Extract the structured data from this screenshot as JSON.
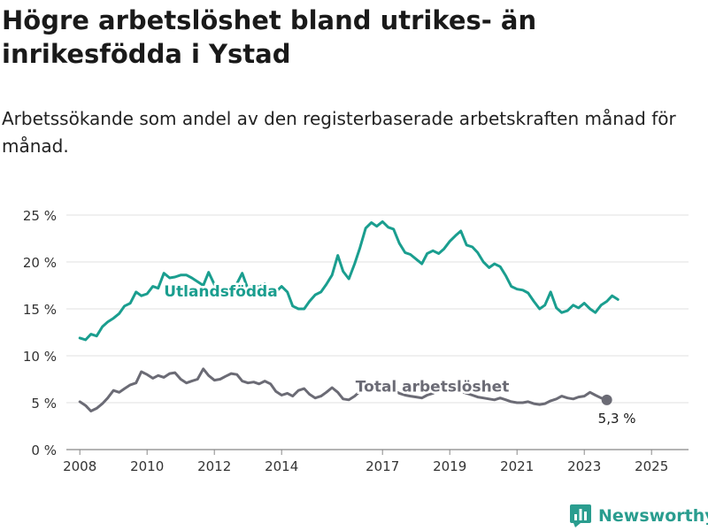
{
  "header": {
    "title": "Högre arbetslöshet bland utrikes- än inrikesfödda i Ystad",
    "subtitle": "Arbetssökande som andel av den registerbaserade arbetskraften månad för månad."
  },
  "brand": {
    "name": "Newsworthy",
    "icon": "newsworthy-logo-icon",
    "color": "#2a9d8f"
  },
  "chart_data": {
    "type": "line",
    "title": "Högre arbetslöshet bland utrikes- än inrikesfödda i Ystad",
    "subtitle": "Arbetssökande som andel av den registerbaserade arbetskraften månad för månad.",
    "xlabel": "",
    "ylabel": "",
    "xlim": [
      2007.6,
      2026.1
    ],
    "ylim": [
      0,
      25
    ],
    "yticks": [
      0,
      5,
      10,
      15,
      20,
      25
    ],
    "ytick_labels": [
      "0 %",
      "5 %",
      "10 %",
      "15 %",
      "20 %",
      "25 %"
    ],
    "xticks": [
      2008,
      2010,
      2012,
      2014,
      2017,
      2019,
      2021,
      2023,
      2025
    ],
    "xtick_labels": [
      "2008",
      "2010",
      "2012",
      "2014",
      "2017",
      "2019",
      "2021",
      "2023",
      "2025"
    ],
    "grid": true,
    "series": [
      {
        "name": "Utlandsfödda",
        "color": "#1a9e8f",
        "label_at": [
          2010.5,
          16.3
        ],
        "points": [
          [
            2008.0,
            11.9
          ],
          [
            2008.17,
            11.7
          ],
          [
            2008.33,
            12.3
          ],
          [
            2008.5,
            12.1
          ],
          [
            2008.67,
            13.1
          ],
          [
            2008.83,
            13.6
          ],
          [
            2009.0,
            14.0
          ],
          [
            2009.17,
            14.5
          ],
          [
            2009.33,
            15.3
          ],
          [
            2009.5,
            15.6
          ],
          [
            2009.67,
            16.8
          ],
          [
            2009.83,
            16.4
          ],
          [
            2010.0,
            16.6
          ],
          [
            2010.17,
            17.4
          ],
          [
            2010.33,
            17.2
          ],
          [
            2010.5,
            18.8
          ],
          [
            2010.67,
            18.3
          ],
          [
            2010.83,
            18.4
          ],
          [
            2011.0,
            18.6
          ],
          [
            2011.17,
            18.6
          ],
          [
            2011.33,
            18.3
          ],
          [
            2011.5,
            17.9
          ],
          [
            2011.67,
            17.5
          ],
          [
            2011.83,
            18.9
          ],
          [
            2012.0,
            17.6
          ],
          [
            2012.17,
            17.2
          ],
          [
            2012.33,
            16.6
          ],
          [
            2012.5,
            17.0
          ],
          [
            2012.67,
            17.7
          ],
          [
            2012.83,
            18.8
          ],
          [
            2013.0,
            17.1
          ],
          [
            2013.17,
            17.6
          ],
          [
            2013.33,
            17.3
          ],
          [
            2013.5,
            17.7
          ],
          [
            2013.67,
            16.5
          ],
          [
            2013.83,
            16.8
          ],
          [
            2014.0,
            17.4
          ],
          [
            2014.17,
            16.8
          ],
          [
            2014.33,
            15.3
          ],
          [
            2014.5,
            15.0
          ],
          [
            2014.67,
            15.0
          ],
          [
            2014.83,
            15.8
          ],
          [
            2015.0,
            16.5
          ],
          [
            2015.17,
            16.8
          ],
          [
            2015.33,
            17.6
          ],
          [
            2015.5,
            18.6
          ],
          [
            2015.67,
            20.7
          ],
          [
            2015.83,
            19.0
          ],
          [
            2016.0,
            18.2
          ],
          [
            2016.17,
            19.8
          ],
          [
            2016.33,
            21.5
          ],
          [
            2016.5,
            23.6
          ],
          [
            2016.67,
            24.2
          ],
          [
            2016.83,
            23.8
          ],
          [
            2017.0,
            24.3
          ],
          [
            2017.17,
            23.7
          ],
          [
            2017.33,
            23.5
          ],
          [
            2017.5,
            22.0
          ],
          [
            2017.67,
            21.0
          ],
          [
            2017.83,
            20.8
          ],
          [
            2018.0,
            20.3
          ],
          [
            2018.17,
            19.8
          ],
          [
            2018.33,
            20.9
          ],
          [
            2018.5,
            21.2
          ],
          [
            2018.67,
            20.9
          ],
          [
            2018.83,
            21.4
          ],
          [
            2019.0,
            22.2
          ],
          [
            2019.17,
            22.8
          ],
          [
            2019.33,
            23.3
          ],
          [
            2019.5,
            21.8
          ],
          [
            2019.67,
            21.6
          ],
          [
            2019.83,
            21.0
          ],
          [
            2020.0,
            20.0
          ],
          [
            2020.17,
            19.4
          ],
          [
            2020.33,
            19.8
          ],
          [
            2020.5,
            19.5
          ],
          [
            2020.67,
            18.5
          ],
          [
            2020.83,
            17.4
          ],
          [
            2021.0,
            17.1
          ],
          [
            2021.17,
            17.0
          ],
          [
            2021.33,
            16.7
          ],
          [
            2021.5,
            15.8
          ],
          [
            2021.67,
            15.0
          ],
          [
            2021.83,
            15.4
          ],
          [
            2022.0,
            16.8
          ],
          [
            2022.17,
            15.1
          ],
          [
            2022.33,
            14.6
          ],
          [
            2022.5,
            14.8
          ],
          [
            2022.67,
            15.4
          ],
          [
            2022.83,
            15.1
          ],
          [
            2023.0,
            15.6
          ],
          [
            2023.17,
            15.0
          ],
          [
            2023.33,
            14.6
          ],
          [
            2023.5,
            15.4
          ],
          [
            2023.67,
            15.8
          ],
          [
            2023.83,
            16.4
          ],
          [
            2024.0,
            16.0
          ]
        ]
      },
      {
        "name": "Total arbetslöshet",
        "color": "#6b6b75",
        "label_at": [
          2016.2,
          6.2
        ],
        "end_marker": true,
        "end_label": "5,3 %",
        "points": [
          [
            2008.0,
            5.1
          ],
          [
            2008.17,
            4.7
          ],
          [
            2008.33,
            4.1
          ],
          [
            2008.5,
            4.4
          ],
          [
            2008.67,
            4.9
          ],
          [
            2008.83,
            5.5
          ],
          [
            2009.0,
            6.3
          ],
          [
            2009.17,
            6.1
          ],
          [
            2009.33,
            6.5
          ],
          [
            2009.5,
            6.9
          ],
          [
            2009.67,
            7.1
          ],
          [
            2009.83,
            8.3
          ],
          [
            2010.0,
            8.0
          ],
          [
            2010.17,
            7.6
          ],
          [
            2010.33,
            7.9
          ],
          [
            2010.5,
            7.7
          ],
          [
            2010.67,
            8.1
          ],
          [
            2010.83,
            8.2
          ],
          [
            2011.0,
            7.5
          ],
          [
            2011.17,
            7.1
          ],
          [
            2011.33,
            7.3
          ],
          [
            2011.5,
            7.5
          ],
          [
            2011.67,
            8.6
          ],
          [
            2011.83,
            7.9
          ],
          [
            2012.0,
            7.4
          ],
          [
            2012.17,
            7.5
          ],
          [
            2012.33,
            7.8
          ],
          [
            2012.5,
            8.1
          ],
          [
            2012.67,
            8.0
          ],
          [
            2012.83,
            7.3
          ],
          [
            2013.0,
            7.1
          ],
          [
            2013.17,
            7.2
          ],
          [
            2013.33,
            7.0
          ],
          [
            2013.5,
            7.3
          ],
          [
            2013.67,
            7.0
          ],
          [
            2013.83,
            6.2
          ],
          [
            2014.0,
            5.8
          ],
          [
            2014.17,
            6.0
          ],
          [
            2014.33,
            5.7
          ],
          [
            2014.5,
            6.3
          ],
          [
            2014.67,
            6.5
          ],
          [
            2014.83,
            5.9
          ],
          [
            2015.0,
            5.5
          ],
          [
            2015.17,
            5.7
          ],
          [
            2015.33,
            6.1
          ],
          [
            2015.5,
            6.6
          ],
          [
            2015.67,
            6.1
          ],
          [
            2015.83,
            5.4
          ],
          [
            2016.0,
            5.3
          ],
          [
            2016.17,
            5.7
          ],
          [
            2016.33,
            6.2
          ],
          [
            2016.5,
            6.5
          ],
          [
            2016.67,
            6.4
          ],
          [
            2016.83,
            6.3
          ],
          [
            2017.0,
            6.6
          ],
          [
            2017.17,
            6.5
          ],
          [
            2017.33,
            6.3
          ],
          [
            2017.5,
            6.0
          ],
          [
            2017.67,
            5.8
          ],
          [
            2017.83,
            5.7
          ],
          [
            2018.0,
            5.6
          ],
          [
            2018.17,
            5.5
          ],
          [
            2018.33,
            5.8
          ],
          [
            2018.5,
            6.0
          ],
          [
            2018.67,
            6.3
          ],
          [
            2018.83,
            6.7
          ],
          [
            2019.0,
            6.6
          ],
          [
            2019.17,
            6.5
          ],
          [
            2019.33,
            6.2
          ],
          [
            2019.5,
            6.0
          ],
          [
            2019.67,
            5.8
          ],
          [
            2019.83,
            5.6
          ],
          [
            2020.0,
            5.5
          ],
          [
            2020.17,
            5.4
          ],
          [
            2020.33,
            5.3
          ],
          [
            2020.5,
            5.5
          ],
          [
            2020.67,
            5.3
          ],
          [
            2020.83,
            5.1
          ],
          [
            2021.0,
            5.0
          ],
          [
            2021.17,
            5.0
          ],
          [
            2021.33,
            5.1
          ],
          [
            2021.5,
            4.9
          ],
          [
            2021.67,
            4.8
          ],
          [
            2021.83,
            4.9
          ],
          [
            2022.0,
            5.2
          ],
          [
            2022.17,
            5.4
          ],
          [
            2022.33,
            5.7
          ],
          [
            2022.5,
            5.5
          ],
          [
            2022.67,
            5.4
          ],
          [
            2022.83,
            5.6
          ],
          [
            2023.0,
            5.7
          ],
          [
            2023.17,
            6.1
          ],
          [
            2023.33,
            5.8
          ],
          [
            2023.5,
            5.5
          ],
          [
            2023.67,
            5.3
          ]
        ]
      }
    ]
  }
}
